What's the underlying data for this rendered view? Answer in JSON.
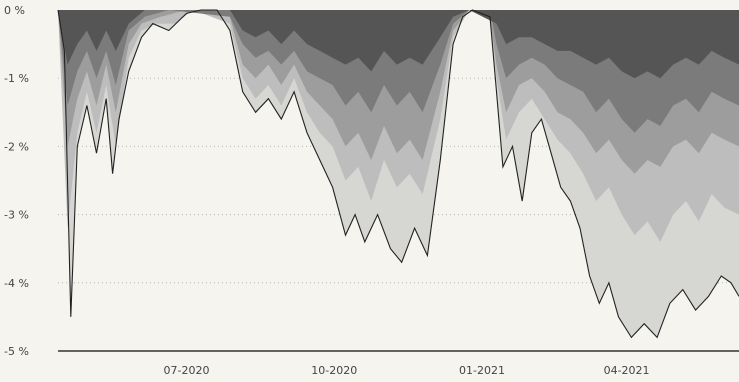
{
  "chart_data": {
    "type": "area",
    "title": "",
    "xlabel": "",
    "ylabel": "",
    "y_unit": "%",
    "ylim": [
      -5,
      0
    ],
    "yticks": [
      0,
      -1,
      -2,
      -3,
      -4,
      -5
    ],
    "ytick_labels": [
      "0 %",
      "-1 %",
      "-2 %",
      "-3 %",
      "-4 %",
      "-5 %"
    ],
    "xlim": [
      "2020-04-12",
      "2021-06-10"
    ],
    "xtick_dates": [
      "2020-07-01",
      "2020-10-01",
      "2021-01-01",
      "2021-04-01"
    ],
    "xtick_labels": [
      "07-2020",
      "10-2020",
      "01-2021",
      "04-2021"
    ],
    "grid": true,
    "legend": false,
    "colors": [
      "#555555",
      "#7b7b7b",
      "#9d9d9d",
      "#bdbdbd",
      "#d6d6d3"
    ],
    "series": [
      {
        "color": "#d6d6d3",
        "points": [
          [
            "2020-04-12",
            0
          ],
          [
            "2020-04-16",
            -0.6
          ],
          [
            "2020-04-20",
            -4.5
          ],
          [
            "2020-04-24",
            -2.0
          ],
          [
            "2020-04-30",
            -1.4
          ],
          [
            "2020-05-06",
            -2.1
          ],
          [
            "2020-05-12",
            -1.3
          ],
          [
            "2020-05-16",
            -2.4
          ],
          [
            "2020-05-20",
            -1.6
          ],
          [
            "2020-05-26",
            -0.9
          ],
          [
            "2020-06-03",
            -0.4
          ],
          [
            "2020-06-10",
            -0.2
          ],
          [
            "2020-06-20",
            -0.3
          ],
          [
            "2020-07-01",
            -0.05
          ],
          [
            "2020-07-10",
            0
          ],
          [
            "2020-07-20",
            0
          ],
          [
            "2020-07-28",
            -0.3
          ],
          [
            "2020-08-05",
            -1.2
          ],
          [
            "2020-08-13",
            -1.5
          ],
          [
            "2020-08-21",
            -1.3
          ],
          [
            "2020-08-29",
            -1.6
          ],
          [
            "2020-09-06",
            -1.2
          ],
          [
            "2020-09-14",
            -1.8
          ],
          [
            "2020-09-22",
            -2.2
          ],
          [
            "2020-09-30",
            -2.6
          ],
          [
            "2020-10-08",
            -3.3
          ],
          [
            "2020-10-14",
            -3.0
          ],
          [
            "2020-10-20",
            -3.4
          ],
          [
            "2020-10-28",
            -3.0
          ],
          [
            "2020-11-05",
            -3.5
          ],
          [
            "2020-11-12",
            -3.7
          ],
          [
            "2020-11-20",
            -3.2
          ],
          [
            "2020-11-28",
            -3.6
          ],
          [
            "2020-12-06",
            -2.2
          ],
          [
            "2020-12-14",
            -0.5
          ],
          [
            "2020-12-20",
            -0.1
          ],
          [
            "2020-12-26",
            0
          ],
          [
            "2021-01-06",
            -0.1
          ],
          [
            "2021-01-10",
            -1.2
          ],
          [
            "2021-01-14",
            -2.3
          ],
          [
            "2021-01-20",
            -2.0
          ],
          [
            "2021-01-26",
            -2.8
          ],
          [
            "2021-02-01",
            -1.8
          ],
          [
            "2021-02-07",
            -1.6
          ],
          [
            "2021-02-13",
            -2.1
          ],
          [
            "2021-02-19",
            -2.6
          ],
          [
            "2021-02-25",
            -2.8
          ],
          [
            "2021-03-03",
            -3.2
          ],
          [
            "2021-03-09",
            -3.9
          ],
          [
            "2021-03-15",
            -4.3
          ],
          [
            "2021-03-21",
            -4.0
          ],
          [
            "2021-03-27",
            -4.5
          ],
          [
            "2021-04-04",
            -4.8
          ],
          [
            "2021-04-12",
            -4.6
          ],
          [
            "2021-04-20",
            -4.8
          ],
          [
            "2021-04-28",
            -4.3
          ],
          [
            "2021-05-06",
            -4.1
          ],
          [
            "2021-05-14",
            -4.4
          ],
          [
            "2021-05-22",
            -4.2
          ],
          [
            "2021-05-30",
            -3.9
          ],
          [
            "2021-06-05",
            -4.0
          ],
          [
            "2021-06-10",
            -4.2
          ]
        ]
      },
      {
        "color": "#bdbdbd",
        "points": [
          [
            "2020-04-12",
            0
          ],
          [
            "2020-04-18",
            -3.2
          ],
          [
            "2020-04-24",
            -1.8
          ],
          [
            "2020-04-30",
            -1.2
          ],
          [
            "2020-05-06",
            -1.8
          ],
          [
            "2020-05-12",
            -1.1
          ],
          [
            "2020-05-18",
            -2.0
          ],
          [
            "2020-05-26",
            -0.7
          ],
          [
            "2020-06-03",
            -0.3
          ],
          [
            "2020-06-12",
            -0.2
          ],
          [
            "2020-06-24",
            -0.2
          ],
          [
            "2020-07-05",
            0
          ],
          [
            "2020-07-28",
            -0.2
          ],
          [
            "2020-08-05",
            -1.0
          ],
          [
            "2020-08-13",
            -1.3
          ],
          [
            "2020-08-21",
            -1.1
          ],
          [
            "2020-08-29",
            -1.4
          ],
          [
            "2020-09-06",
            -1.0
          ],
          [
            "2020-09-14",
            -1.5
          ],
          [
            "2020-09-22",
            -1.8
          ],
          [
            "2020-09-30",
            -2.0
          ],
          [
            "2020-10-08",
            -2.5
          ],
          [
            "2020-10-16",
            -2.3
          ],
          [
            "2020-10-24",
            -2.8
          ],
          [
            "2020-11-01",
            -2.2
          ],
          [
            "2020-11-09",
            -2.6
          ],
          [
            "2020-11-17",
            -2.4
          ],
          [
            "2020-11-25",
            -2.7
          ],
          [
            "2020-12-06",
            -1.6
          ],
          [
            "2020-12-14",
            -0.4
          ],
          [
            "2020-12-24",
            0
          ],
          [
            "2021-01-06",
            -0.1
          ],
          [
            "2021-01-10",
            -1.0
          ],
          [
            "2021-01-16",
            -1.9
          ],
          [
            "2021-01-24",
            -1.5
          ],
          [
            "2021-02-01",
            -1.3
          ],
          [
            "2021-02-09",
            -1.6
          ],
          [
            "2021-02-17",
            -1.9
          ],
          [
            "2021-02-25",
            -2.1
          ],
          [
            "2021-03-05",
            -2.4
          ],
          [
            "2021-03-13",
            -2.8
          ],
          [
            "2021-03-21",
            -2.6
          ],
          [
            "2021-03-29",
            -3.0
          ],
          [
            "2021-04-06",
            -3.3
          ],
          [
            "2021-04-14",
            -3.1
          ],
          [
            "2021-04-22",
            -3.4
          ],
          [
            "2021-04-30",
            -3.0
          ],
          [
            "2021-05-08",
            -2.8
          ],
          [
            "2021-05-16",
            -3.1
          ],
          [
            "2021-05-24",
            -2.7
          ],
          [
            "2021-06-01",
            -2.9
          ],
          [
            "2021-06-10",
            -3.0
          ]
        ]
      },
      {
        "color": "#9d9d9d",
        "points": [
          [
            "2020-04-12",
            0
          ],
          [
            "2020-04-18",
            -2.0
          ],
          [
            "2020-04-24",
            -1.3
          ],
          [
            "2020-04-30",
            -0.9
          ],
          [
            "2020-05-06",
            -1.4
          ],
          [
            "2020-05-12",
            -0.8
          ],
          [
            "2020-05-18",
            -1.5
          ],
          [
            "2020-05-26",
            -0.5
          ],
          [
            "2020-06-03",
            -0.2
          ],
          [
            "2020-06-15",
            -0.1
          ],
          [
            "2020-07-01",
            0
          ],
          [
            "2020-07-28",
            -0.1
          ],
          [
            "2020-08-05",
            -0.8
          ],
          [
            "2020-08-13",
            -1.0
          ],
          [
            "2020-08-21",
            -0.8
          ],
          [
            "2020-08-29",
            -1.1
          ],
          [
            "2020-09-06",
            -0.8
          ],
          [
            "2020-09-14",
            -1.2
          ],
          [
            "2020-09-22",
            -1.4
          ],
          [
            "2020-09-30",
            -1.6
          ],
          [
            "2020-10-08",
            -2.0
          ],
          [
            "2020-10-16",
            -1.8
          ],
          [
            "2020-10-24",
            -2.2
          ],
          [
            "2020-11-01",
            -1.7
          ],
          [
            "2020-11-09",
            -2.1
          ],
          [
            "2020-11-17",
            -1.9
          ],
          [
            "2020-11-25",
            -2.2
          ],
          [
            "2020-12-06",
            -1.2
          ],
          [
            "2020-12-14",
            -0.3
          ],
          [
            "2020-12-24",
            0
          ],
          [
            "2021-01-06",
            -0.1
          ],
          [
            "2021-01-10",
            -0.8
          ],
          [
            "2021-01-16",
            -1.5
          ],
          [
            "2021-01-24",
            -1.1
          ],
          [
            "2021-02-01",
            -1.0
          ],
          [
            "2021-02-09",
            -1.2
          ],
          [
            "2021-02-17",
            -1.5
          ],
          [
            "2021-02-25",
            -1.6
          ],
          [
            "2021-03-05",
            -1.8
          ],
          [
            "2021-03-13",
            -2.1
          ],
          [
            "2021-03-21",
            -1.9
          ],
          [
            "2021-03-29",
            -2.2
          ],
          [
            "2021-04-06",
            -2.4
          ],
          [
            "2021-04-14",
            -2.2
          ],
          [
            "2021-04-22",
            -2.3
          ],
          [
            "2021-04-30",
            -2.0
          ],
          [
            "2021-05-08",
            -1.9
          ],
          [
            "2021-05-16",
            -2.1
          ],
          [
            "2021-05-24",
            -1.8
          ],
          [
            "2021-06-01",
            -1.9
          ],
          [
            "2021-06-10",
            -2.0
          ]
        ]
      },
      {
        "color": "#7b7b7b",
        "points": [
          [
            "2020-04-12",
            0
          ],
          [
            "2020-04-18",
            -1.4
          ],
          [
            "2020-04-24",
            -0.9
          ],
          [
            "2020-04-30",
            -0.6
          ],
          [
            "2020-05-06",
            -1.0
          ],
          [
            "2020-05-12",
            -0.6
          ],
          [
            "2020-05-18",
            -1.1
          ],
          [
            "2020-05-26",
            -0.3
          ],
          [
            "2020-06-05",
            -0.1
          ],
          [
            "2020-06-20",
            0
          ],
          [
            "2020-07-28",
            -0.1
          ],
          [
            "2020-08-05",
            -0.5
          ],
          [
            "2020-08-13",
            -0.7
          ],
          [
            "2020-08-21",
            -0.6
          ],
          [
            "2020-08-29",
            -0.8
          ],
          [
            "2020-09-06",
            -0.6
          ],
          [
            "2020-09-14",
            -0.9
          ],
          [
            "2020-09-22",
            -1.0
          ],
          [
            "2020-09-30",
            -1.1
          ],
          [
            "2020-10-08",
            -1.4
          ],
          [
            "2020-10-16",
            -1.2
          ],
          [
            "2020-10-24",
            -1.5
          ],
          [
            "2020-11-01",
            -1.1
          ],
          [
            "2020-11-09",
            -1.4
          ],
          [
            "2020-11-17",
            -1.2
          ],
          [
            "2020-11-25",
            -1.5
          ],
          [
            "2020-12-06",
            -0.8
          ],
          [
            "2020-12-14",
            -0.2
          ],
          [
            "2020-12-24",
            0
          ],
          [
            "2021-01-06",
            0
          ],
          [
            "2021-01-10",
            -0.5
          ],
          [
            "2021-01-16",
            -1.0
          ],
          [
            "2021-01-24",
            -0.8
          ],
          [
            "2021-02-01",
            -0.7
          ],
          [
            "2021-02-09",
            -0.8
          ],
          [
            "2021-02-17",
            -1.0
          ],
          [
            "2021-02-25",
            -1.1
          ],
          [
            "2021-03-05",
            -1.2
          ],
          [
            "2021-03-13",
            -1.5
          ],
          [
            "2021-03-21",
            -1.3
          ],
          [
            "2021-03-29",
            -1.6
          ],
          [
            "2021-04-06",
            -1.8
          ],
          [
            "2021-04-14",
            -1.6
          ],
          [
            "2021-04-22",
            -1.7
          ],
          [
            "2021-04-30",
            -1.4
          ],
          [
            "2021-05-08",
            -1.3
          ],
          [
            "2021-05-16",
            -1.5
          ],
          [
            "2021-05-24",
            -1.2
          ],
          [
            "2021-06-01",
            -1.3
          ],
          [
            "2021-06-10",
            -1.4
          ]
        ]
      },
      {
        "color": "#555555",
        "points": [
          [
            "2020-04-12",
            0
          ],
          [
            "2020-04-18",
            -0.8
          ],
          [
            "2020-04-24",
            -0.5
          ],
          [
            "2020-04-30",
            -0.3
          ],
          [
            "2020-05-06",
            -0.6
          ],
          [
            "2020-05-12",
            -0.3
          ],
          [
            "2020-05-18",
            -0.6
          ],
          [
            "2020-05-26",
            -0.2
          ],
          [
            "2020-06-05",
            0
          ],
          [
            "2020-07-28",
            0
          ],
          [
            "2020-08-05",
            -0.3
          ],
          [
            "2020-08-13",
            -0.4
          ],
          [
            "2020-08-21",
            -0.3
          ],
          [
            "2020-08-29",
            -0.5
          ],
          [
            "2020-09-06",
            -0.3
          ],
          [
            "2020-09-14",
            -0.5
          ],
          [
            "2020-09-22",
            -0.6
          ],
          [
            "2020-09-30",
            -0.7
          ],
          [
            "2020-10-08",
            -0.8
          ],
          [
            "2020-10-16",
            -0.7
          ],
          [
            "2020-10-24",
            -0.9
          ],
          [
            "2020-11-01",
            -0.6
          ],
          [
            "2020-11-09",
            -0.8
          ],
          [
            "2020-11-17",
            -0.7
          ],
          [
            "2020-11-25",
            -0.8
          ],
          [
            "2020-12-06",
            -0.4
          ],
          [
            "2020-12-14",
            -0.1
          ],
          [
            "2020-12-24",
            0
          ],
          [
            "2021-01-10",
            -0.2
          ],
          [
            "2021-01-16",
            -0.5
          ],
          [
            "2021-01-24",
            -0.4
          ],
          [
            "2021-02-01",
            -0.4
          ],
          [
            "2021-02-09",
            -0.5
          ],
          [
            "2021-02-17",
            -0.6
          ],
          [
            "2021-02-25",
            -0.6
          ],
          [
            "2021-03-05",
            -0.7
          ],
          [
            "2021-03-13",
            -0.8
          ],
          [
            "2021-03-21",
            -0.7
          ],
          [
            "2021-03-29",
            -0.9
          ],
          [
            "2021-04-06",
            -1.0
          ],
          [
            "2021-04-14",
            -0.9
          ],
          [
            "2021-04-22",
            -1.0
          ],
          [
            "2021-04-30",
            -0.8
          ],
          [
            "2021-05-08",
            -0.7
          ],
          [
            "2021-05-16",
            -0.8
          ],
          [
            "2021-05-24",
            -0.6
          ],
          [
            "2021-06-01",
            -0.7
          ],
          [
            "2021-06-10",
            -0.8
          ]
        ]
      }
    ]
  }
}
